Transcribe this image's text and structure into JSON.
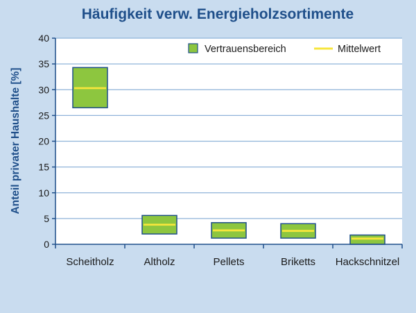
{
  "colors": {
    "background": "#c9dcef",
    "plot_background": "#ffffff",
    "grid": "#8fb3d9",
    "axis": "#1f4f8a",
    "box_fill": "#8dc63f",
    "box_stroke": "#1f4f8a",
    "mean_line": "#f7e63c",
    "title": "#1f4f8a"
  },
  "chart_data": {
    "type": "bar",
    "subtype": "floating range bars with mean marker",
    "title": "Häufigkeit verw. Energieholzsortimente",
    "xlabel": "",
    "ylabel": "Anteil privater Haushalte [%]",
    "ylim": [
      0,
      40
    ],
    "yticks": [
      0,
      5,
      10,
      15,
      20,
      25,
      30,
      35,
      40
    ],
    "grid": true,
    "legend_position": "top-right",
    "categories": [
      "Scheitholz",
      "Altholz",
      "Pellets",
      "Briketts",
      "Hackschnitzel"
    ],
    "series": [
      {
        "name": "Vertrauensbereich",
        "kind": "range",
        "low": [
          26.5,
          2.0,
          1.2,
          1.2,
          0.0
        ],
        "high": [
          34.3,
          5.6,
          4.2,
          4.0,
          1.8
        ]
      },
      {
        "name": "Mittelwert",
        "kind": "mean",
        "values": [
          30.3,
          3.8,
          2.7,
          2.6,
          1.1
        ]
      }
    ]
  }
}
